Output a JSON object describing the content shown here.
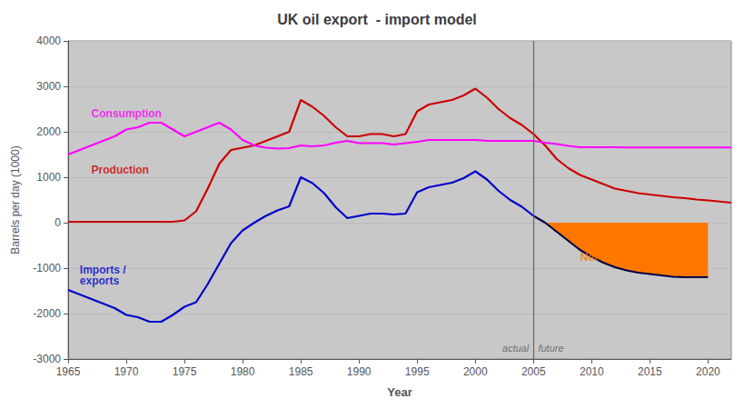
{
  "chart_data": {
    "type": "line",
    "title": "UK oil export  - import model",
    "xlabel": "Year",
    "ylabel": "Barrels per day (1000)",
    "xlim": [
      1965,
      2022
    ],
    "ylim": [
      -3000,
      4000
    ],
    "xticks": [
      1965,
      1970,
      1975,
      1980,
      1985,
      1990,
      1995,
      2000,
      2005,
      2010,
      2015,
      2020
    ],
    "yticks": [
      -3000,
      -2000,
      -1000,
      0,
      1000,
      2000,
      3000,
      4000
    ],
    "grid": "y",
    "background": "#c8c8c8",
    "vertical_line": {
      "x": 2005,
      "color": "#666666"
    },
    "series": [
      {
        "type": "line",
        "color": "#cc0000",
        "x": [
          1965,
          1966,
          1967,
          1968,
          1969,
          1970,
          1971,
          1972,
          1973,
          1974,
          1975,
          1976,
          1977,
          1978,
          1979,
          1980,
          1981,
          1982,
          1983,
          1984,
          1985,
          1986,
          1987,
          1988,
          1989,
          1990,
          1991,
          1992,
          1993,
          1994,
          1995,
          1996,
          1997,
          1998,
          1999,
          2000,
          2001,
          2002,
          2003,
          2004,
          2005,
          2006,
          2007,
          2008,
          2009,
          2010,
          2011,
          2012,
          2013,
          2014,
          2015,
          2016,
          2017,
          2018,
          2019,
          2020,
          2021,
          2022
        ],
        "values": [
          20,
          20,
          20,
          20,
          20,
          20,
          20,
          20,
          20,
          20,
          50,
          250,
          750,
          1300,
          1600,
          1650,
          1700,
          1800,
          1900,
          2000,
          2700,
          2550,
          2350,
          2100,
          1900,
          1900,
          1950,
          1950,
          1900,
          1950,
          2450,
          2600,
          2650,
          2700,
          2800,
          2950,
          2750,
          2500,
          2300,
          2150,
          1950,
          1700,
          1400,
          1200,
          1050,
          950,
          850,
          750,
          700,
          650,
          620,
          590,
          560,
          540,
          510,
          490,
          465,
          440
        ]
      },
      {
        "type": "line",
        "color": "#ff00ff",
        "x": [
          1965,
          1966,
          1967,
          1968,
          1969,
          1970,
          1971,
          1972,
          1973,
          1974,
          1975,
          1976,
          1977,
          1978,
          1979,
          1980,
          1981,
          1982,
          1983,
          1984,
          1985,
          1986,
          1987,
          1988,
          1989,
          1990,
          1991,
          1992,
          1993,
          1994,
          1995,
          1996,
          1997,
          1998,
          1999,
          2000,
          2001,
          2002,
          2003,
          2004,
          2005,
          2006,
          2007,
          2008,
          2009,
          2010,
          2011,
          2012,
          2013,
          2014,
          2015,
          2016,
          2017,
          2018,
          2019,
          2020,
          2021,
          2022
        ],
        "values": [
          1500,
          1600,
          1700,
          1800,
          1900,
          2050,
          2100,
          2200,
          2200,
          2050,
          1900,
          2000,
          2100,
          2200,
          2050,
          1820,
          1700,
          1650,
          1630,
          1640,
          1700,
          1680,
          1700,
          1760,
          1800,
          1750,
          1750,
          1750,
          1720,
          1750,
          1780,
          1820,
          1820,
          1820,
          1820,
          1820,
          1800,
          1800,
          1800,
          1800,
          1800,
          1760,
          1730,
          1690,
          1660,
          1660,
          1660,
          1660,
          1655,
          1655,
          1655,
          1655,
          1655,
          1655,
          1655,
          1655,
          1655,
          1655
        ]
      },
      {
        "type": "line",
        "color": "#0000cc",
        "x": [
          1965,
          1966,
          1967,
          1968,
          1969,
          1970,
          1971,
          1972,
          1973,
          1974,
          1975,
          1976,
          1977,
          1978,
          1979,
          1980,
          1981,
          1982,
          1983,
          1984,
          1985,
          1986,
          1987,
          1988,
          1989,
          1990,
          1991,
          1992,
          1993,
          1994,
          1995,
          1996,
          1997,
          1998,
          1999,
          2000,
          2001,
          2002,
          2003,
          2004,
          2005
        ],
        "values": [
          -1480,
          -1580,
          -1680,
          -1780,
          -1880,
          -2030,
          -2080,
          -2180,
          -2180,
          -2030,
          -1850,
          -1750,
          -1350,
          -900,
          -450,
          -170,
          0,
          150,
          270,
          360,
          1000,
          870,
          650,
          340,
          100,
          150,
          200,
          200,
          180,
          200,
          670,
          780,
          830,
          880,
          980,
          1130,
          950,
          700,
          500,
          350,
          150
        ]
      },
      {
        "type": "line",
        "color": "#000044",
        "x": [
          2005,
          2006,
          2007,
          2008,
          2009,
          2010,
          2011,
          2012,
          2013,
          2014,
          2015,
          2016,
          2017,
          2018,
          2019,
          2020
        ],
        "values": [
          150,
          0,
          -200,
          -400,
          -600,
          -750,
          -880,
          -980,
          -1050,
          -1100,
          -1130,
          -1160,
          -1190,
          -1200,
          -1200,
          -1200
        ]
      },
      {
        "type": "area",
        "color": "#ff7700",
        "x": [
          2005,
          2006,
          2007,
          2008,
          2009,
          2010,
          2011,
          2012,
          2013,
          2014,
          2015,
          2016,
          2017,
          2018,
          2019,
          2020
        ],
        "upper": [
          0,
          0,
          0,
          0,
          0,
          0,
          0,
          0,
          0,
          0,
          0,
          0,
          0,
          0,
          0,
          0
        ],
        "lower": [
          0,
          0,
          -200,
          -400,
          -600,
          -750,
          -880,
          -980,
          -1050,
          -1100,
          -1130,
          -1160,
          -1190,
          -1200,
          -1200,
          -1200
        ]
      }
    ],
    "annotations": [
      {
        "text": "actual",
        "x": 2004.6,
        "y": -2870,
        "color": "#555555",
        "align": "right"
      },
      {
        "text": "future",
        "x": 2005.4,
        "y": -2870,
        "color": "#555555",
        "align": "left"
      }
    ],
    "labels": [
      {
        "text": "Consumption",
        "x": 1967,
        "y": 2280,
        "color": "#ff00ff"
      },
      {
        "text": "Production",
        "x": 1967,
        "y": 1050,
        "color": "#cc0000"
      },
      {
        "text": "Imports /\nexports",
        "x": 1966,
        "y": -1400,
        "color": "#0000cc"
      },
      {
        "text": "Net oil imports",
        "x": 2009,
        "y": -870,
        "color": "#ff7700"
      }
    ]
  }
}
